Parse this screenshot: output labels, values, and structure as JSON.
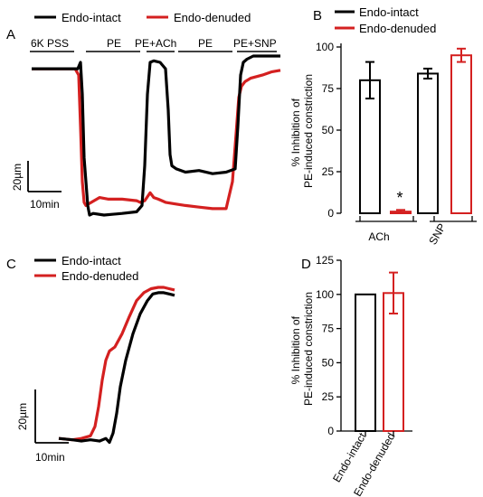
{
  "colors": {
    "intact": "#000000",
    "denuded": "#d42020"
  },
  "panels": {
    "a": "A",
    "b": "B",
    "c": "C",
    "d": "D"
  },
  "chart_data": [
    {
      "panel": "A",
      "type": "line",
      "legend": [
        "Endo-intact",
        "Endo-denuded"
      ],
      "protocol_labels": [
        "6K PSS",
        "PE",
        "PE+ACh",
        "PE",
        "PE+SNP"
      ],
      "scale_bar": {
        "vertical": "20µm",
        "horizontal": "10min"
      },
      "series": [
        {
          "name": "Endo-intact",
          "x": [
            0,
            51,
            54,
            56,
            58,
            62,
            64,
            68,
            80,
            100,
            116,
            122,
            125,
            128,
            131,
            135,
            142,
            148,
            151,
            153,
            155,
            160,
            170,
            185,
            200,
            215,
            225,
            228,
            231,
            234,
            238,
            245,
            255,
            265,
            275
          ],
          "y": [
            96,
            96,
            100,
            80,
            40,
            10,
            4,
            5,
            4,
            5,
            6,
            10,
            35,
            80,
            100,
            101,
            100,
            96,
            70,
            42,
            35,
            33,
            31,
            32,
            30,
            31,
            33,
            60,
            92,
            100,
            102,
            104,
            104,
            104,
            104
          ]
        },
        {
          "name": "Endo-denuded",
          "x": [
            0,
            48,
            52,
            54,
            56,
            58,
            60,
            66,
            75,
            85,
            100,
            116,
            120,
            125,
            131,
            135,
            140,
            148,
            158,
            170,
            185,
            200,
            215,
            222,
            226,
            229,
            232,
            236,
            242,
            255,
            265,
            275
          ],
          "y": [
            96,
            96,
            92,
            60,
            25,
            12,
            10,
            12,
            15,
            14,
            14,
            13,
            12,
            13,
            18,
            15,
            14,
            12,
            11,
            10,
            9,
            8,
            8,
            25,
            55,
            78,
            85,
            88,
            90,
            92,
            94,
            95
          ]
        }
      ]
    },
    {
      "panel": "B",
      "type": "bar",
      "legend": [
        "Endo-intact",
        "Endo-denuded"
      ],
      "categories": [
        "ACh",
        "SNP"
      ],
      "ylabel": [
        "% Inhibition of",
        "PE-induced constriction"
      ],
      "ylim": [
        0,
        100
      ],
      "yticks": [
        "0",
        "25",
        "50",
        "75",
        "100"
      ],
      "annotation": "*",
      "series": [
        {
          "name": "Endo-intact",
          "values": [
            80,
            84
          ],
          "errors": [
            11,
            3
          ]
        },
        {
          "name": "Endo-denuded",
          "values": [
            1,
            95
          ],
          "errors": [
            1,
            4
          ]
        }
      ]
    },
    {
      "panel": "C",
      "type": "line",
      "legend": [
        "Endo-intact",
        "Endo-denuded"
      ],
      "scale_bar": {
        "vertical": "20µm",
        "horizontal": "10min"
      },
      "series": [
        {
          "name": "Endo-intact",
          "x": [
            0,
            15,
            25,
            35,
            45,
            52,
            56,
            60,
            64,
            68,
            74,
            82,
            90,
            98,
            104,
            110,
            116,
            122,
            128
          ],
          "y": [
            6,
            5,
            4,
            5,
            4,
            6,
            3,
            10,
            25,
            45,
            65,
            85,
            100,
            110,
            115,
            116,
            116,
            115,
            114
          ]
        },
        {
          "name": "Endo-denuded",
          "x": [
            0,
            15,
            25,
            35,
            40,
            44,
            48,
            52,
            56,
            62,
            70,
            78,
            86,
            94,
            102,
            110,
            116,
            122,
            128
          ],
          "y": [
            6,
            5,
            6,
            8,
            15,
            30,
            50,
            65,
            72,
            75,
            85,
            98,
            110,
            116,
            119,
            120,
            120,
            119,
            118
          ]
        }
      ]
    },
    {
      "panel": "D",
      "type": "bar",
      "categories": [
        "Endo-intact",
        "Endo-denuded"
      ],
      "ylabel": [
        "% Inhibition of",
        "PE-induced constriction"
      ],
      "ylim": [
        0,
        125
      ],
      "yticks": [
        "0",
        "25",
        "50",
        "75",
        "100",
        "125"
      ],
      "values": [
        100,
        101
      ],
      "errors": [
        0,
        15
      ]
    }
  ]
}
